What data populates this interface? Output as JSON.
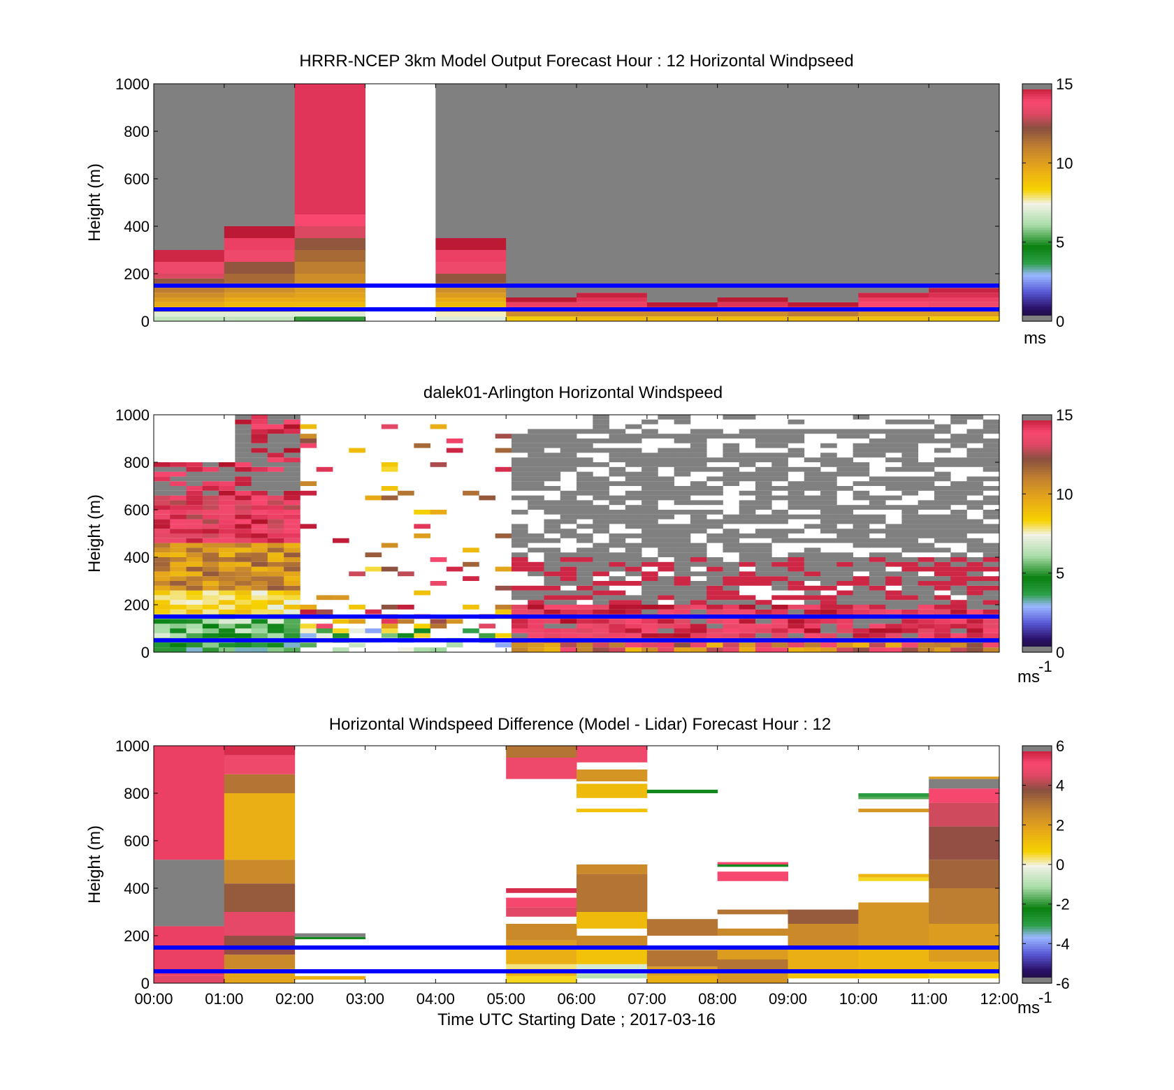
{
  "chart_data": [
    {
      "type": "heatmap",
      "title": "HRRR-NCEP 3km Model Output   Forecast Hour : 12 Horizontal Windpseed",
      "ylabel": "Height (m)",
      "ylim": [
        0,
        1000
      ],
      "yticks": [
        "0",
        "200",
        "400",
        "600",
        "800",
        "1000"
      ],
      "xlim": [
        "00:00",
        "12:00"
      ],
      "colorbar": {
        "ticks": [
          "0",
          "5",
          "10",
          "15"
        ],
        "range": [
          0,
          15
        ],
        "unit": "ms"
      },
      "reference_heights_m": [
        150,
        50
      ],
      "columns": [
        {
          "start": "00:00",
          "end": "01:00",
          "levels": [
            [
              0,
              20,
              6.5
            ],
            [
              20,
              40,
              7
            ],
            [
              40,
              60,
              8.5
            ],
            [
              60,
              80,
              9.5
            ],
            [
              80,
              100,
              10
            ],
            [
              100,
              120,
              10.5
            ],
            [
              120,
              140,
              11
            ],
            [
              140,
              160,
              11.5
            ],
            [
              160,
              180,
              12
            ],
            [
              180,
              200,
              13
            ],
            [
              200,
              250,
              13.5
            ],
            [
              250,
              300,
              14.5
            ]
          ]
        },
        {
          "start": "01:00",
          "end": "02:00",
          "levels": [
            [
              0,
              20,
              6.5
            ],
            [
              20,
              40,
              7
            ],
            [
              40,
              60,
              8.5
            ],
            [
              60,
              80,
              9
            ],
            [
              80,
              100,
              9.5
            ],
            [
              100,
              120,
              10
            ],
            [
              120,
              140,
              10.5
            ],
            [
              140,
              160,
              11
            ],
            [
              160,
              200,
              11.5
            ],
            [
              200,
              250,
              12
            ],
            [
              250,
              300,
              13.5
            ],
            [
              300,
              350,
              14
            ],
            [
              350,
              400,
              14.8
            ]
          ]
        },
        {
          "start": "02:00",
          "end": "03:00",
          "levels": [
            [
              0,
              20,
              5
            ],
            [
              20,
              40,
              7
            ],
            [
              40,
              60,
              8
            ],
            [
              60,
              80,
              9
            ],
            [
              80,
              100,
              9.5
            ],
            [
              100,
              120,
              9.8
            ],
            [
              120,
              140,
              10
            ],
            [
              140,
              160,
              10
            ],
            [
              160,
              200,
              10.5
            ],
            [
              200,
              250,
              11
            ],
            [
              250,
              300,
              11.5
            ],
            [
              300,
              350,
              12
            ],
            [
              350,
              400,
              13
            ],
            [
              400,
              450,
              13.8
            ],
            [
              450,
              1000,
              14.2
            ]
          ]
        },
        {
          "start": "04:00",
          "end": "05:00",
          "levels": [
            [
              0,
              20,
              7
            ],
            [
              20,
              40,
              7.5
            ],
            [
              40,
              60,
              8.5
            ],
            [
              60,
              80,
              9
            ],
            [
              80,
              100,
              9.5
            ],
            [
              100,
              120,
              10
            ],
            [
              120,
              140,
              10.5
            ],
            [
              140,
              160,
              11
            ],
            [
              160,
              200,
              12
            ],
            [
              200,
              250,
              13.5
            ],
            [
              250,
              300,
              14
            ],
            [
              300,
              350,
              14.8
            ]
          ]
        },
        {
          "start": "05:00",
          "end": "06:00",
          "levels": [
            [
              0,
              20,
              8.5
            ],
            [
              20,
              40,
              10.5
            ],
            [
              40,
              60,
              13.5
            ],
            [
              60,
              80,
              14
            ],
            [
              80,
              100,
              14.8
            ]
          ]
        },
        {
          "start": "06:00",
          "end": "07:00",
          "levels": [
            [
              0,
              20,
              9
            ],
            [
              20,
              40,
              10.5
            ],
            [
              40,
              60,
              13.5
            ],
            [
              60,
              80,
              14
            ],
            [
              80,
              100,
              14.2
            ],
            [
              100,
              120,
              14.6
            ]
          ]
        },
        {
          "start": "07:00",
          "end": "08:00",
          "levels": [
            [
              0,
              20,
              9
            ],
            [
              20,
              40,
              10.5
            ],
            [
              40,
              60,
              14
            ],
            [
              60,
              80,
              14.8
            ]
          ]
        },
        {
          "start": "08:00",
          "end": "09:00",
          "levels": [
            [
              0,
              20,
              9
            ],
            [
              20,
              40,
              10.5
            ],
            [
              40,
              60,
              14
            ],
            [
              60,
              80,
              14.2
            ],
            [
              80,
              100,
              14.8
            ]
          ]
        },
        {
          "start": "09:00",
          "end": "10:00",
          "levels": [
            [
              0,
              20,
              9
            ],
            [
              20,
              40,
              11
            ],
            [
              40,
              60,
              13.8
            ],
            [
              60,
              80,
              14.8
            ]
          ]
        },
        {
          "start": "10:00",
          "end": "11:00",
          "levels": [
            [
              0,
              20,
              8.8
            ],
            [
              20,
              40,
              10
            ],
            [
              40,
              60,
              13
            ],
            [
              60,
              80,
              13.8
            ],
            [
              80,
              100,
              14
            ],
            [
              100,
              120,
              14.5
            ]
          ]
        },
        {
          "start": "11:00",
          "end": "12:00",
          "levels": [
            [
              0,
              20,
              8.5
            ],
            [
              20,
              40,
              10
            ],
            [
              40,
              60,
              13
            ],
            [
              60,
              80,
              13.5
            ],
            [
              80,
              100,
              14
            ],
            [
              100,
              120,
              14.3
            ],
            [
              120,
              140,
              14.6
            ]
          ]
        }
      ]
    },
    {
      "type": "heatmap",
      "title": "dalek01-Arlington  Horizontal Windspeed",
      "ylabel": "Height (m)",
      "ylim": [
        0,
        1000
      ],
      "yticks": [
        "0",
        "200",
        "400",
        "600",
        "800",
        "1000"
      ],
      "xlim": [
        "00:00",
        "12:00"
      ],
      "colorbar": {
        "ticks": [
          "0",
          "5",
          "10",
          "15"
        ],
        "range": [
          0,
          15
        ],
        "unit": "ms",
        "unit_exponent": "-1"
      },
      "reference_heights_m": [
        150,
        50
      ],
      "summary": "Lidar profiles every ~15 min: low-level green/yellow winds 00:00-02:00 with strong jet (13-15 m/s) above 400 m; sparse returns 02:00-05:00; after 05:00 gray (above range) aloft with red 13-15 m/s in lowest 200 m."
    },
    {
      "type": "heatmap",
      "title": "Horizontal Windspeed Difference (Model - Lidar) Forecast Hour : 12",
      "ylabel": "Height (m)",
      "xlabel": "Time UTC  Starting Date ; 2017-03-16",
      "ylim": [
        0,
        1000
      ],
      "yticks": [
        "0",
        "200",
        "400",
        "600",
        "800",
        "1000"
      ],
      "xticks": [
        "00:00",
        "01:00",
        "02:00",
        "03:00",
        "04:00",
        "05:00",
        "06:00",
        "07:00",
        "08:00",
        "09:00",
        "10:00",
        "11:00",
        "12:00"
      ],
      "colorbar": {
        "ticks": [
          "-6",
          "-4",
          "-2",
          "0",
          "2",
          "4",
          "6"
        ],
        "range": [
          -6,
          6
        ],
        "unit": "ms",
        "unit_exponent": "-1"
      },
      "reference_heights_m": [
        150,
        50
      ],
      "cells": [
        {
          "start": "00:00",
          "end": "01:00",
          "levels": [
            [
              0,
              30,
              4.5
            ],
            [
              30,
              240,
              5.2
            ],
            [
              240,
              520,
              6.5
            ],
            [
              520,
              1000,
              5.2
            ]
          ]
        },
        {
          "start": "01:00",
          "end": "02:00",
          "levels": [
            [
              0,
              60,
              1.8
            ],
            [
              60,
              120,
              2.5
            ],
            [
              120,
              200,
              3.8
            ],
            [
              200,
              300,
              4.6
            ],
            [
              300,
              420,
              3.5
            ],
            [
              420,
              520,
              2.5
            ],
            [
              520,
              800,
              1.5
            ],
            [
              800,
              880,
              3
            ],
            [
              880,
              960,
              4.8
            ],
            [
              960,
              1000,
              5.5
            ]
          ]
        },
        {
          "start": "02:00",
          "end": "03:00",
          "levels": [
            [
              15,
              30,
              1.5
            ],
            [
              185,
              195,
              -2.5
            ],
            [
              195,
              210,
              6.5
            ]
          ]
        },
        {
          "start": "05:00",
          "end": "06:00",
          "levels": [
            [
              0,
              30,
              0.5
            ],
            [
              30,
              60,
              1.5
            ],
            [
              60,
              80,
              0.2
            ],
            [
              80,
              150,
              1.5
            ],
            [
              150,
              180,
              2
            ],
            [
              180,
              250,
              2.5
            ],
            [
              280,
              320,
              4.5
            ],
            [
              320,
              360,
              5
            ],
            [
              380,
              400,
              5.5
            ],
            [
              860,
              950,
              4.8
            ],
            [
              950,
              1000,
              3
            ]
          ]
        },
        {
          "start": "06:00",
          "end": "07:00",
          "levels": [
            [
              20,
              40,
              -1
            ],
            [
              40,
              80,
              -0.5
            ],
            [
              80,
              150,
              1
            ],
            [
              150,
              200,
              2.5
            ],
            [
              230,
              300,
              1.2
            ],
            [
              300,
              460,
              3
            ],
            [
              460,
              500,
              2.5
            ],
            [
              720,
              735,
              1
            ],
            [
              780,
              840,
              1.2
            ],
            [
              850,
              900,
              2.2
            ],
            [
              930,
              1000,
              4.8
            ]
          ]
        },
        {
          "start": "07:00",
          "end": "08:00",
          "levels": [
            [
              0,
              30,
              1.5
            ],
            [
              30,
              70,
              2
            ],
            [
              70,
              140,
              3
            ],
            [
              200,
              270,
              3
            ],
            [
              800,
              815,
              -2.5
            ]
          ]
        },
        {
          "start": "08:00",
          "end": "09:00",
          "levels": [
            [
              0,
              50,
              2.2
            ],
            [
              50,
              100,
              3
            ],
            [
              100,
              150,
              2
            ],
            [
              200,
              230,
              2.5
            ],
            [
              290,
              310,
              3
            ],
            [
              430,
              470,
              5
            ],
            [
              490,
              500,
              -2.5
            ],
            [
              500,
              510,
              5
            ]
          ]
        },
        {
          "start": "09:00",
          "end": "10:00",
          "levels": [
            [
              20,
              40,
              1
            ],
            [
              40,
              150,
              1.5
            ],
            [
              150,
              250,
              2.5
            ],
            [
              250,
              310,
              3.5
            ]
          ]
        },
        {
          "start": "10:00",
          "end": "11:00",
          "levels": [
            [
              20,
              40,
              0.8
            ],
            [
              40,
              150,
              1.3
            ],
            [
              150,
              340,
              2.2
            ],
            [
              430,
              445,
              0.5
            ],
            [
              445,
              460,
              1.3
            ],
            [
              720,
              735,
              2.2
            ],
            [
              775,
              785,
              -1.8
            ],
            [
              785,
              800,
              -3
            ]
          ]
        },
        {
          "start": "11:00",
          "end": "12:00",
          "levels": [
            [
              20,
              40,
              0.5
            ],
            [
              40,
              90,
              1.3
            ],
            [
              90,
              250,
              2
            ],
            [
              250,
              400,
              2.8
            ],
            [
              400,
              520,
              3.3
            ],
            [
              520,
              660,
              3.8
            ],
            [
              660,
              760,
              4.3
            ],
            [
              760,
              820,
              5
            ],
            [
              820,
              860,
              6.5
            ],
            [
              860,
              870,
              2
            ]
          ]
        }
      ]
    }
  ]
}
